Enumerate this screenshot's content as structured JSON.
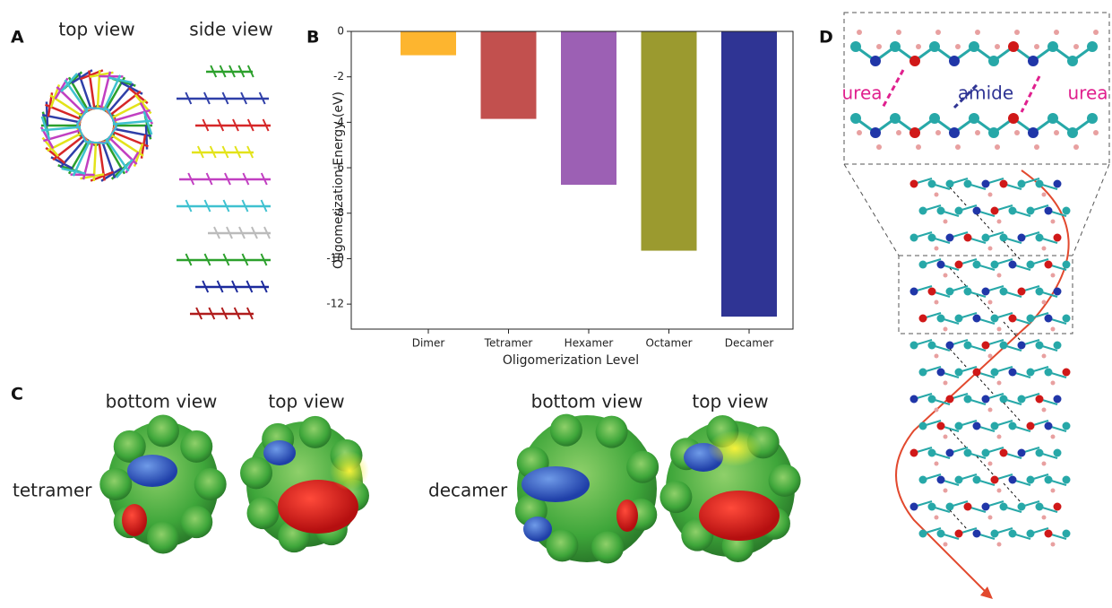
{
  "panels": {
    "a": {
      "label": "A",
      "top_view": "top view",
      "side_view": "side view"
    },
    "b": {
      "label": "B"
    },
    "c": {
      "label": "C",
      "tetramer_bottom": "bottom view",
      "tetramer_top": "top view",
      "tetramer": "tetramer",
      "decamer_bottom": "bottom view",
      "decamer_top": "top view",
      "decamer": "decamer"
    },
    "d": {
      "label": "D",
      "urea_left": "urea",
      "amide": "amide",
      "urea_right": "urea"
    }
  },
  "chart_data": {
    "type": "bar",
    "categories": [
      "Dimer",
      "Tetramer",
      "Hexamer",
      "Octamer",
      "Decamer"
    ],
    "values": [
      -1.05,
      -3.85,
      -6.75,
      -9.65,
      -12.55
    ],
    "colors": [
      "#fdb52f",
      "#c2504e",
      "#9c60b4",
      "#9b9a2f",
      "#2f3494"
    ],
    "x_label": "Oligomerization Level",
    "y_label": "Oligomerization Energy (eV)",
    "ylim": [
      -13.1,
      0
    ],
    "yticks": [
      0,
      -2,
      -4,
      -6,
      -8,
      -10,
      -12
    ]
  }
}
